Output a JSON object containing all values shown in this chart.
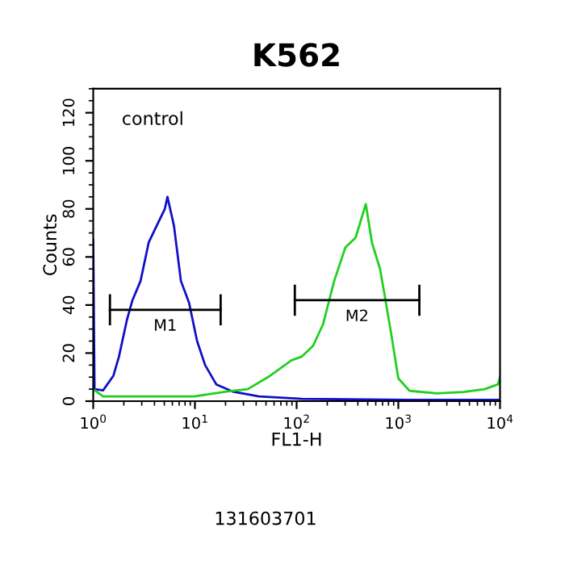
{
  "chart_data": {
    "type": "line",
    "title": "K562",
    "xlabel": "FL1-H",
    "ylabel": "Counts",
    "log": "x",
    "xlim": [
      1,
      10000
    ],
    "xticks": [
      {
        "value": 1,
        "label": "10$^{0}$"
      },
      {
        "value": 10,
        "label": "10$^{1}$"
      },
      {
        "value": 100,
        "label": "10$^{2}$"
      },
      {
        "value": 1000,
        "label": "10$^{3}$"
      },
      {
        "value": 10000,
        "label": "10$^{4}$"
      }
    ],
    "ylim": [
      0,
      130
    ],
    "yticks": [
      0,
      20,
      40,
      60,
      80,
      100,
      120
    ],
    "grid": false,
    "legend": false,
    "series": [
      {
        "color": "#1010c8",
        "x": [
          1,
          1.03,
          1.25,
          1.58,
          1.79,
          2.15,
          2.43,
          2.92,
          3.51,
          4.21,
          5.06,
          5.37,
          6.22,
          7.28,
          8.75,
          10.5,
          12.6,
          16.2,
          23.4,
          42.7,
          112,
          1290,
          10000
        ],
        "values": [
          67,
          5,
          4.5,
          10.6,
          18.5,
          34,
          42,
          50,
          66,
          73,
          80,
          85,
          73,
          50,
          41,
          25,
          15,
          7,
          4,
          2,
          1,
          0.5,
          0.5
        ]
      },
      {
        "color": "#20d020",
        "x": [
          1,
          1.25,
          9.9,
          20.4,
          33.1,
          55,
          89,
          112,
          145,
          182,
          234,
          302,
          380,
          479,
          550,
          661,
          741,
          851,
          1000,
          1290,
          2400,
          4370,
          7080,
          9550,
          10000
        ],
        "values": [
          5,
          2,
          2,
          4,
          5,
          10.6,
          17,
          18.5,
          23,
          32,
          50,
          64,
          68,
          82,
          66,
          55,
          43,
          28,
          9.5,
          4.3,
          3.2,
          3.8,
          5,
          7,
          10
        ]
      },
      {
        "color": "#000000",
        "x": [
          1.46,
          17.9
        ],
        "values": [
          38,
          38
        ]
      },
      {
        "color": "#000000",
        "x": [
          96,
          1610
        ],
        "values": [
          42,
          42
        ]
      }
    ],
    "annotations": [
      "control",
      "131603701",
      {
        "text": "M1",
        "x": 5.11,
        "y": 38
      },
      {
        "text": "M2",
        "x": 393,
        "y": 42
      }
    ]
  }
}
